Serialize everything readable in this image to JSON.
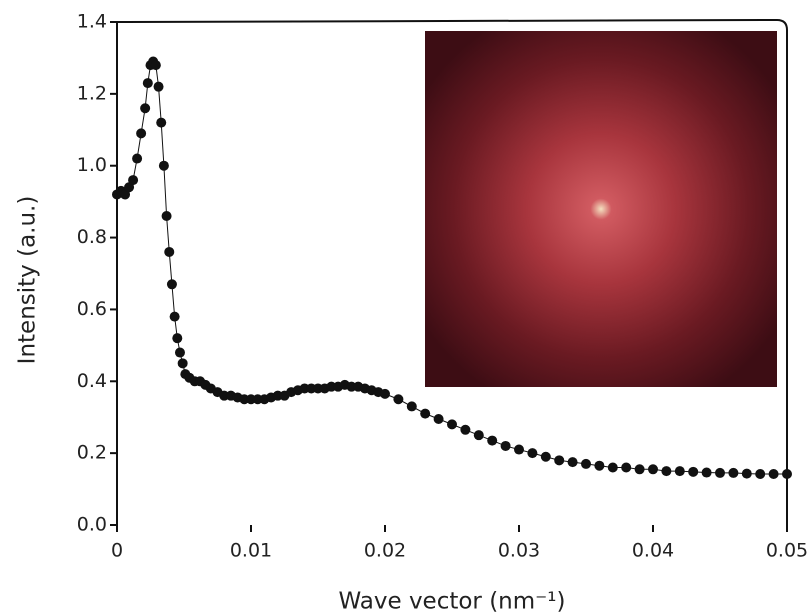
{
  "chart_data": {
    "type": "line",
    "x_label": "Wave vector (nm⁻¹)",
    "y_label": "Intensity (a.u.)",
    "xlim": [
      0,
      0.05
    ],
    "xticks": [
      0,
      0.01,
      0.02,
      0.03,
      0.04,
      0.05
    ],
    "ylim": [
      0,
      1.4
    ],
    "yticks": [
      {
        "value": 0,
        "label": "0.0"
      },
      0.2,
      0.4,
      0.6,
      0.8,
      {
        "value": 1,
        "label": "1.0"
      },
      1.2,
      1.4
    ],
    "series": [
      {
        "color": "#111111",
        "x": [
          0,
          0.0003,
          0.0006,
          0.0009,
          0.0012,
          0.0015,
          0.0018,
          0.0021,
          0.0023,
          0.0025,
          0.0027,
          0.0029,
          0.0031,
          0.0033,
          0.0035,
          0.0037,
          0.0039,
          0.0041,
          0.0043,
          0.0045,
          0.0047,
          0.0049,
          0.0051,
          0.0054,
          0.0058,
          0.0062,
          0.0066,
          0.007,
          0.0075,
          0.008,
          0.0085,
          0.009,
          0.0095,
          0.01,
          0.0105,
          0.011,
          0.0115,
          0.012,
          0.0125,
          0.013,
          0.0135,
          0.014,
          0.0145,
          0.015,
          0.0155,
          0.016,
          0.0165,
          0.017,
          0.0175,
          0.018,
          0.0185,
          0.019,
          0.0195,
          0.02,
          0.021,
          0.022,
          0.023,
          0.024,
          0.025,
          0.026,
          0.027,
          0.028,
          0.029,
          0.03,
          0.031,
          0.032,
          0.033,
          0.034,
          0.035,
          0.036,
          0.037,
          0.038,
          0.039,
          0.04,
          0.041,
          0.042,
          0.043,
          0.044,
          0.045,
          0.046,
          0.047,
          0.048,
          0.049,
          0.05
        ],
        "values": [
          0.92,
          0.93,
          0.92,
          0.94,
          0.96,
          1.02,
          1.09,
          1.16,
          1.23,
          1.28,
          1.29,
          1.28,
          1.22,
          1.12,
          1.0,
          0.86,
          0.76,
          0.67,
          0.58,
          0.52,
          0.48,
          0.45,
          0.42,
          0.41,
          0.4,
          0.4,
          0.39,
          0.38,
          0.37,
          0.36,
          0.36,
          0.355,
          0.35,
          0.35,
          0.35,
          0.35,
          0.355,
          0.36,
          0.36,
          0.37,
          0.375,
          0.38,
          0.38,
          0.38,
          0.38,
          0.385,
          0.385,
          0.39,
          0.385,
          0.385,
          0.38,
          0.375,
          0.37,
          0.365,
          0.35,
          0.33,
          0.31,
          0.295,
          0.28,
          0.265,
          0.25,
          0.235,
          0.22,
          0.21,
          0.2,
          0.19,
          0.18,
          0.175,
          0.17,
          0.165,
          0.16,
          0.16,
          0.155,
          0.155,
          0.15,
          0.15,
          0.148,
          0.146,
          0.145,
          0.145,
          0.143,
          0.142,
          0.142,
          0.142
        ]
      }
    ]
  }
}
